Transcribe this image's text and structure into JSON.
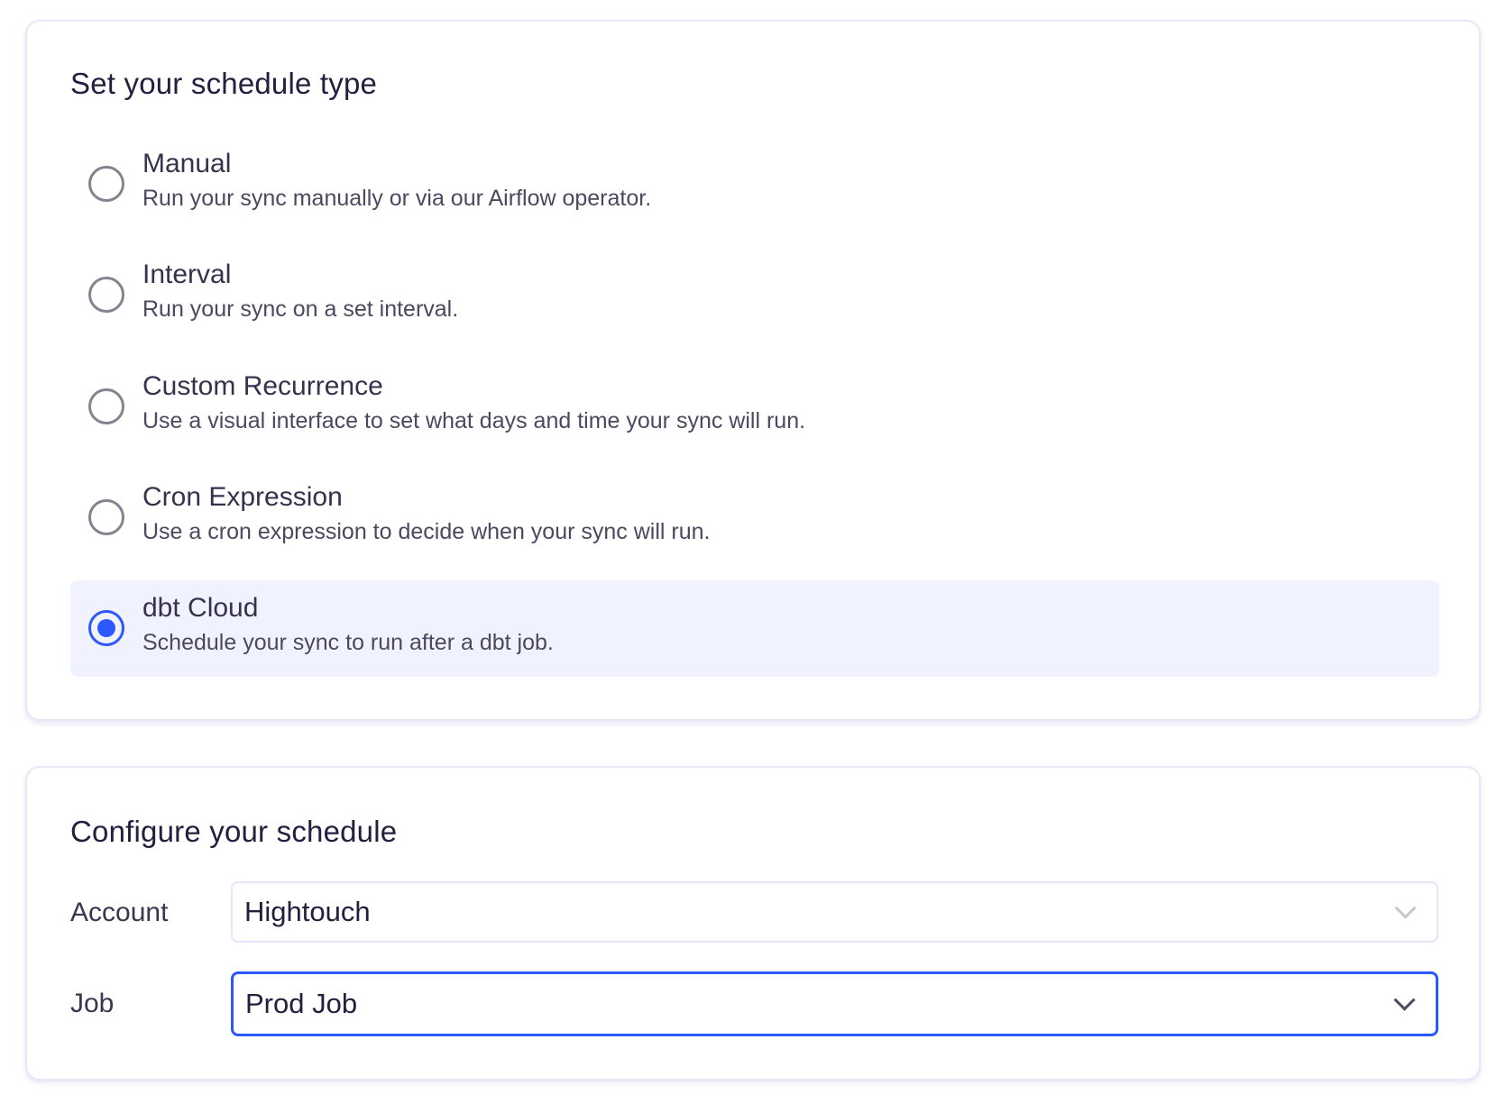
{
  "schedule_type": {
    "title": "Set your schedule type",
    "options": [
      {
        "label": "Manual",
        "description": "Run your sync manually or via our Airflow operator.",
        "selected": false
      },
      {
        "label": "Interval",
        "description": "Run your sync on a set interval.",
        "selected": false
      },
      {
        "label": "Custom Recurrence",
        "description": "Use a visual interface to set what days and time your sync will run.",
        "selected": false
      },
      {
        "label": "Cron Expression",
        "description": "Use a cron expression to decide when your sync will run.",
        "selected": false
      },
      {
        "label": "dbt Cloud",
        "description": "Schedule your sync to run after a dbt job.",
        "selected": true
      }
    ]
  },
  "configure": {
    "title": "Configure your schedule",
    "account": {
      "label": "Account",
      "value": "Hightouch"
    },
    "job": {
      "label": "Job",
      "value": "Prod Job"
    }
  },
  "colors": {
    "accent": "#2c58ff",
    "selected_bg": "#f0f3fe",
    "title": "#23203f"
  }
}
